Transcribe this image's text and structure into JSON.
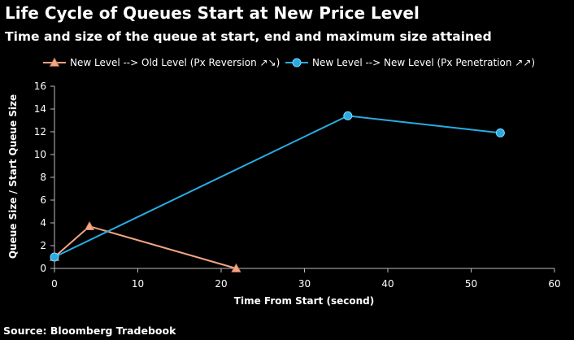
{
  "chart_data": {
    "type": "line",
    "title": "Life Cycle of Queues Start at New Price Level",
    "subtitle": "Time and size of the queue at start, end and maximum size attained",
    "xlabel": "Time From Start (second)",
    "ylabel": "Queue Size / Start Queue Size",
    "xlim": [
      0,
      60
    ],
    "ylim": [
      0,
      16
    ],
    "xticks": [
      0,
      10,
      20,
      30,
      40,
      50,
      60
    ],
    "yticks": [
      0,
      2,
      4,
      6,
      8,
      10,
      12,
      14,
      16
    ],
    "grid": false,
    "legend_position": "top",
    "series": [
      {
        "name": "New Level --> Old Level (Px Reversion ↗↘)",
        "color": "#f4a582",
        "marker": "triangle",
        "points": [
          [
            0,
            1.0
          ],
          [
            4.2,
            3.7
          ],
          [
            21.8,
            0.0
          ]
        ]
      },
      {
        "name": "New Level --> New Level (Px Penetration ↗↗)",
        "color": "#29abe2",
        "marker": "circle",
        "points": [
          [
            0,
            1.0
          ],
          [
            35.2,
            13.4
          ],
          [
            53.5,
            11.9
          ]
        ]
      }
    ]
  },
  "source": "Source: Bloomberg Tradebook"
}
